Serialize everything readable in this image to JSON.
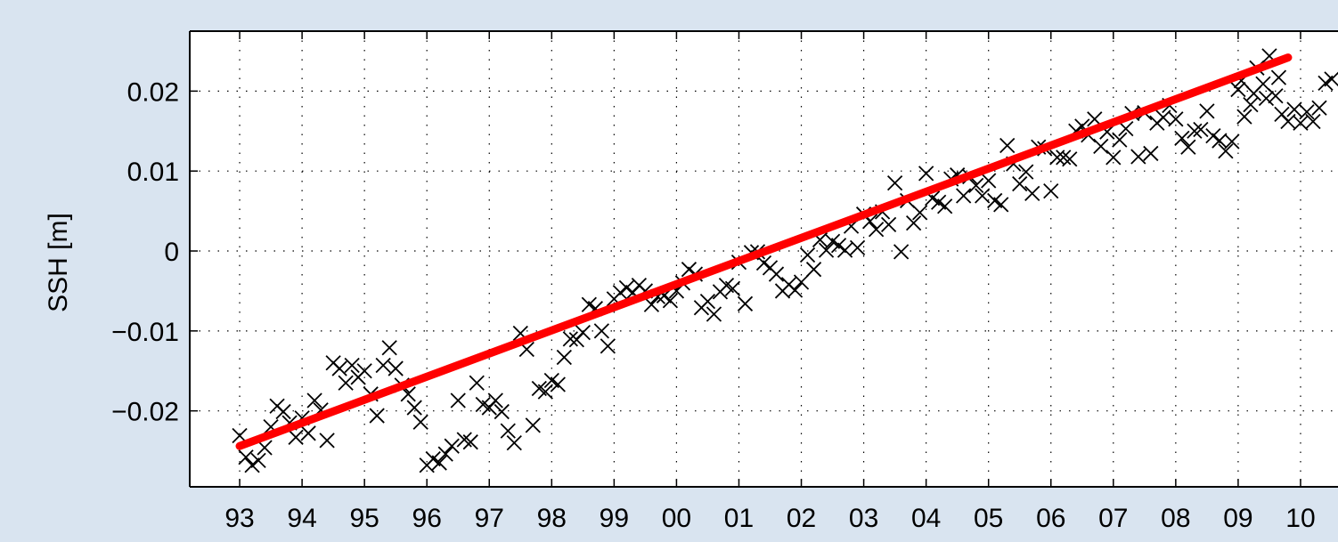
{
  "chart_data": {
    "type": "scatter",
    "title": "",
    "xlabel": "",
    "ylabel": "SSH [m]",
    "xlim": [
      1992.2,
      2010.6
    ],
    "ylim": [
      -0.0295,
      0.0275
    ],
    "grid": true,
    "x_ticks": [
      {
        "value": 1993,
        "label": "93"
      },
      {
        "value": 1994,
        "label": "94"
      },
      {
        "value": 1995,
        "label": "95"
      },
      {
        "value": 1996,
        "label": "96"
      },
      {
        "value": 1997,
        "label": "97"
      },
      {
        "value": 1998,
        "label": "98"
      },
      {
        "value": 1999,
        "label": "99"
      },
      {
        "value": 2000,
        "label": "00"
      },
      {
        "value": 2001,
        "label": "01"
      },
      {
        "value": 2002,
        "label": "02"
      },
      {
        "value": 2003,
        "label": "03"
      },
      {
        "value": 2004,
        "label": "04"
      },
      {
        "value": 2005,
        "label": "05"
      },
      {
        "value": 2006,
        "label": "06"
      },
      {
        "value": 2007,
        "label": "07"
      },
      {
        "value": 2008,
        "label": "08"
      },
      {
        "value": 2009,
        "label": "09"
      },
      {
        "value": 2010,
        "label": "10"
      }
    ],
    "y_ticks": [
      {
        "value": -0.02,
        "label": "−0.02"
      },
      {
        "value": -0.01,
        "label": "−0.01"
      },
      {
        "value": 0,
        "label": "0"
      },
      {
        "value": 0.01,
        "label": "0.01"
      },
      {
        "value": 0.02,
        "label": "0.02"
      }
    ],
    "colors": {
      "markers": "#000000",
      "trend": "#ff0000",
      "background": "#d9e4f0",
      "plot": "#ffffff"
    },
    "series": [
      {
        "marker": "x",
        "points": [
          [
            1993.0,
            -0.0231
          ],
          [
            1993.1,
            -0.0258
          ],
          [
            1993.2,
            -0.0268
          ],
          [
            1993.3,
            -0.0262
          ],
          [
            1993.4,
            -0.0246
          ],
          [
            1993.5,
            -0.022
          ],
          [
            1993.6,
            -0.0194
          ],
          [
            1993.7,
            -0.0201
          ],
          [
            1993.8,
            -0.0215
          ],
          [
            1993.9,
            -0.0233
          ],
          [
            1994.0,
            -0.0209
          ],
          [
            1994.1,
            -0.0228
          ],
          [
            1994.2,
            -0.0187
          ],
          [
            1994.3,
            -0.0199
          ],
          [
            1994.4,
            -0.0237
          ],
          [
            1994.5,
            -0.014
          ],
          [
            1994.6,
            -0.0147
          ],
          [
            1994.7,
            -0.0165
          ],
          [
            1994.8,
            -0.0143
          ],
          [
            1994.9,
            -0.0158
          ],
          [
            1995.0,
            -0.015
          ],
          [
            1995.1,
            -0.0179
          ],
          [
            1995.2,
            -0.0206
          ],
          [
            1995.3,
            -0.0143
          ],
          [
            1995.4,
            -0.0121
          ],
          [
            1995.5,
            -0.0147
          ],
          [
            1995.6,
            -0.0168
          ],
          [
            1995.7,
            -0.0179
          ],
          [
            1995.8,
            -0.0196
          ],
          [
            1995.9,
            -0.0214
          ],
          [
            1996.0,
            -0.0268
          ],
          [
            1996.1,
            -0.026
          ],
          [
            1996.2,
            -0.0265
          ],
          [
            1996.3,
            -0.0254
          ],
          [
            1996.4,
            -0.0244
          ],
          [
            1996.5,
            -0.0187
          ],
          [
            1996.6,
            -0.0236
          ],
          [
            1996.7,
            -0.0239
          ],
          [
            1996.8,
            -0.0165
          ],
          [
            1996.9,
            -0.0192
          ],
          [
            1997.0,
            -0.0196
          ],
          [
            1997.1,
            -0.0187
          ],
          [
            1997.2,
            -0.0201
          ],
          [
            1997.3,
            -0.0225
          ],
          [
            1997.4,
            -0.024
          ],
          [
            1997.5,
            -0.0103
          ],
          [
            1997.6,
            -0.0123
          ],
          [
            1997.7,
            -0.0218
          ],
          [
            1997.8,
            -0.0172
          ],
          [
            1997.9,
            -0.0176
          ],
          [
            1998.0,
            -0.0162
          ],
          [
            1998.1,
            -0.0167
          ],
          [
            1998.2,
            -0.0133
          ],
          [
            1998.3,
            -0.011
          ],
          [
            1998.4,
            -0.0111
          ],
          [
            1998.5,
            -0.0102
          ],
          [
            1998.6,
            -0.0067
          ],
          [
            1998.7,
            -0.0072
          ],
          [
            1998.8,
            -0.01
          ],
          [
            1998.9,
            -0.0119
          ],
          [
            1999.0,
            -0.006
          ],
          [
            1999.1,
            -0.0052
          ],
          [
            1999.2,
            -0.0046
          ],
          [
            1999.3,
            -0.0052
          ],
          [
            1999.4,
            -0.0043
          ],
          [
            1999.5,
            -0.005
          ],
          [
            1999.6,
            -0.0067
          ],
          [
            1999.7,
            -0.0057
          ],
          [
            1999.8,
            -0.0056
          ],
          [
            1999.9,
            -0.0062
          ],
          [
            2000.0,
            -0.005
          ],
          [
            2000.1,
            -0.004
          ],
          [
            2000.2,
            -0.0023
          ],
          [
            2000.3,
            -0.0029
          ],
          [
            2000.4,
            -0.0071
          ],
          [
            2000.5,
            -0.0063
          ],
          [
            2000.6,
            -0.0079
          ],
          [
            2000.7,
            -0.0051
          ],
          [
            2000.8,
            -0.0043
          ],
          [
            2000.9,
            -0.0047
          ],
          [
            2001.0,
            -0.0014
          ],
          [
            2001.1,
            -0.0066
          ],
          [
            2001.2,
            -0.0002
          ],
          [
            2001.3,
            -0.0001
          ],
          [
            2001.4,
            -0.0015
          ],
          [
            2001.5,
            -0.0021
          ],
          [
            2001.6,
            -0.0029
          ],
          [
            2001.7,
            -0.005
          ],
          [
            2001.8,
            -0.0042
          ],
          [
            2001.9,
            -0.0049
          ],
          [
            2002.0,
            -0.0039
          ],
          [
            2002.1,
            -0.0005
          ],
          [
            2002.2,
            -0.0023
          ],
          [
            2002.3,
            0.0014
          ],
          [
            2002.4,
            0.0001
          ],
          [
            2002.5,
            0.0012
          ],
          [
            2002.6,
            0.0007
          ],
          [
            2002.7,
            0.0001
          ],
          [
            2002.8,
            0.0031
          ],
          [
            2002.9,
            0.0004
          ],
          [
            2003.0,
            0.0046
          ],
          [
            2003.1,
            0.0037
          ],
          [
            2003.2,
            0.0027
          ],
          [
            2003.3,
            0.0049
          ],
          [
            2003.4,
            0.0033
          ],
          [
            2003.5,
            0.0085
          ],
          [
            2003.6,
            -0.0001
          ],
          [
            2003.7,
            0.0063
          ],
          [
            2003.8,
            0.0035
          ],
          [
            2003.9,
            0.0048
          ],
          [
            2004.0,
            0.0097
          ],
          [
            2004.1,
            0.0066
          ],
          [
            2004.2,
            0.0061
          ],
          [
            2004.3,
            0.0056
          ],
          [
            2004.4,
            0.009
          ],
          [
            2004.5,
            0.0095
          ],
          [
            2004.6,
            0.0069
          ],
          [
            2004.7,
            0.0093
          ],
          [
            2004.8,
            0.0082
          ],
          [
            2004.9,
            0.0069
          ],
          [
            2005.0,
            0.0088
          ],
          [
            2005.1,
            0.0063
          ],
          [
            2005.2,
            0.0058
          ],
          [
            2005.3,
            0.0132
          ],
          [
            2005.4,
            0.0109
          ],
          [
            2005.5,
            0.0084
          ],
          [
            2005.6,
            0.0099
          ],
          [
            2005.7,
            0.0072
          ],
          [
            2005.8,
            0.013
          ],
          [
            2005.9,
            0.0128
          ],
          [
            2006.0,
            0.0075
          ],
          [
            2006.1,
            0.0117
          ],
          [
            2006.2,
            0.0117
          ],
          [
            2006.3,
            0.0115
          ],
          [
            2006.4,
            0.015
          ],
          [
            2006.5,
            0.0156
          ],
          [
            2006.6,
            0.0145
          ],
          [
            2006.7,
            0.0165
          ],
          [
            2006.8,
            0.0131
          ],
          [
            2006.9,
            0.0149
          ],
          [
            2007.0,
            0.0117
          ],
          [
            2007.1,
            0.0139
          ],
          [
            2007.2,
            0.0153
          ],
          [
            2007.3,
            0.0172
          ],
          [
            2007.4,
            0.0118
          ],
          [
            2007.5,
            0.0173
          ],
          [
            2007.6,
            0.0122
          ],
          [
            2007.7,
            0.016
          ],
          [
            2007.8,
            0.0167
          ],
          [
            2007.9,
            0.0182
          ],
          [
            2008.0,
            0.0165
          ],
          [
            2008.1,
            0.0141
          ],
          [
            2008.2,
            0.013
          ],
          [
            2008.3,
            0.015
          ],
          [
            2008.4,
            0.0152
          ],
          [
            2008.5,
            0.0175
          ],
          [
            2008.6,
            0.0144
          ],
          [
            2008.7,
            0.0138
          ],
          [
            2008.8,
            0.0125
          ],
          [
            2008.9,
            0.0137
          ],
          [
            2009.0,
            0.0202
          ],
          [
            2009.1,
            0.0168
          ],
          [
            2009.2,
            0.0183
          ],
          [
            2009.3,
            0.0229
          ],
          [
            2009.4,
            0.0209
          ],
          [
            2009.5,
            0.0244
          ],
          [
            2009.6,
            0.0194
          ],
          [
            2009.7,
            0.0171
          ],
          [
            2009.8,
            0.0162
          ],
          [
            2009.9,
            0.0177
          ],
          [
            2010.0,
            0.016
          ],
          [
            2010.1,
            0.0174
          ],
          [
            2010.2,
            0.0162
          ],
          [
            2010.3,
            0.0179
          ],
          [
            2010.4,
            0.021
          ],
          [
            2010.5,
            0.0215
          ],
          [
            2009.05,
            0.0213
          ],
          [
            2009.25,
            0.0197
          ],
          [
            2009.45,
            0.0191
          ],
          [
            2009.65,
            0.0217
          ]
        ]
      },
      {
        "type": "line",
        "points": [
          [
            1993.0,
            -0.0244
          ],
          [
            2009.8,
            0.0242
          ]
        ]
      }
    ]
  }
}
